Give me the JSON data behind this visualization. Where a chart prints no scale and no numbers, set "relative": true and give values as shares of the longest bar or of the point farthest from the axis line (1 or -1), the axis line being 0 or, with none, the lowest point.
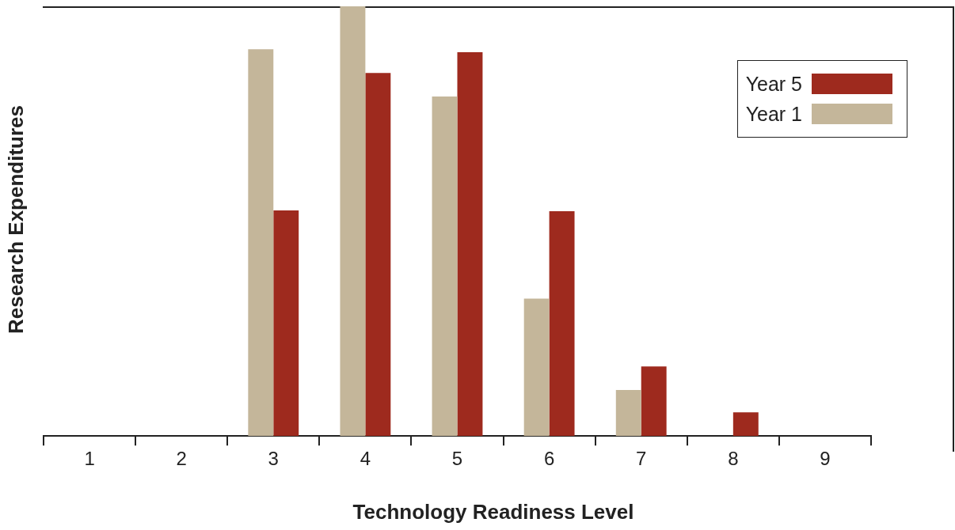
{
  "chart_data": {
    "type": "bar",
    "relative": true,
    "xlabel": "Technology Readiness Level",
    "ylabel": "Research Expenditures",
    "categories": [
      "1",
      "2",
      "3",
      "4",
      "5",
      "6",
      "7",
      "8",
      "9"
    ],
    "series": [
      {
        "name": "Year 1",
        "color": "#c4b69a",
        "values": [
          0,
          0,
          0.9,
          1,
          0.79,
          0.32,
          0.107,
          0,
          0
        ]
      },
      {
        "name": "Year 5",
        "color": "#9e2a1e",
        "values": [
          0,
          0,
          0.525,
          0.845,
          0.893,
          0.523,
          0.162,
          0.055,
          0
        ]
      }
    ],
    "legend": "top right"
  }
}
